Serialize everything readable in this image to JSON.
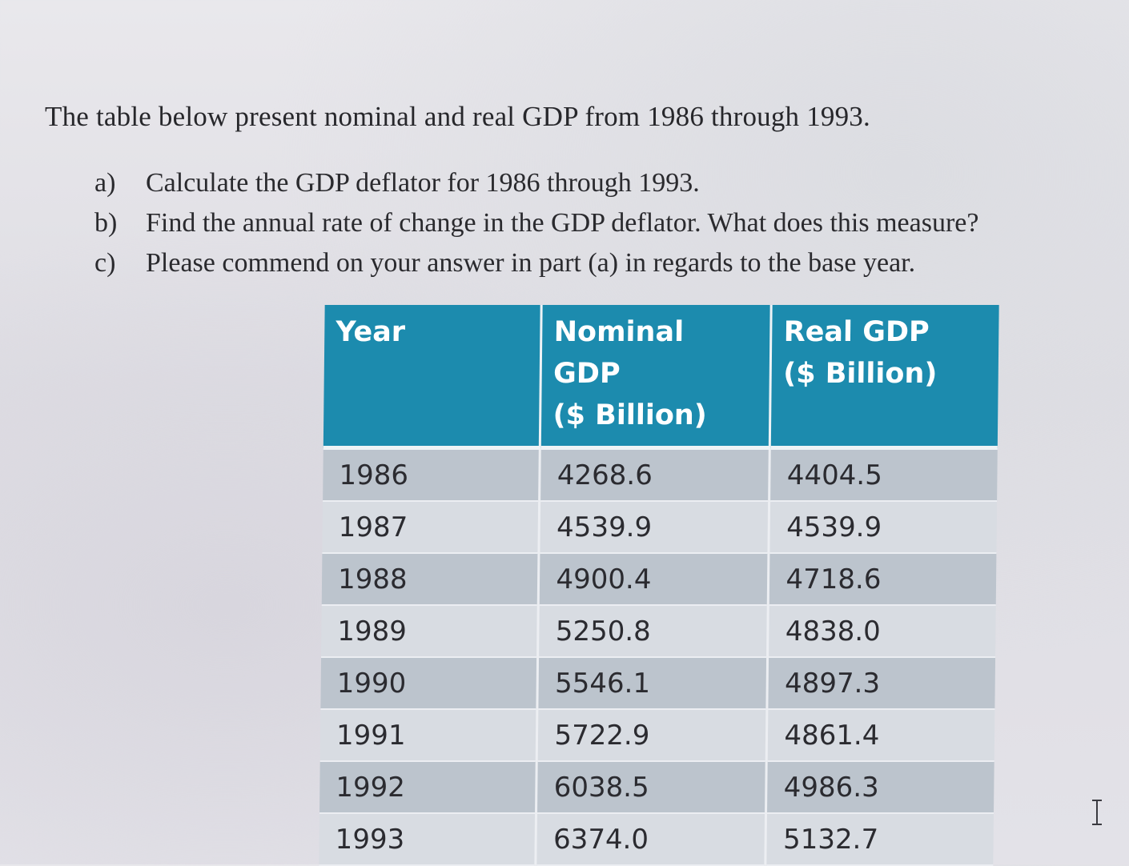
{
  "intro": "The table below present nominal and real GDP from 1986 through 1993.",
  "questions": [
    {
      "marker": "a)",
      "text": "Calculate the GDP deflator for 1986 through 1993."
    },
    {
      "marker": "b)",
      "text": "Find the annual rate of change in the GDP deflator. What does this measure?"
    },
    {
      "marker": "c)",
      "text": "Please commend on your answer in part (a) in regards to the base year."
    }
  ],
  "table": {
    "headers": {
      "year": "Year",
      "nominal_line1": "Nominal GDP",
      "nominal_line2": "($ Billion)",
      "real_line1": "Real GDP",
      "real_line2": "($ Billion)"
    },
    "rows": [
      {
        "year": "1986",
        "nominal": "4268.6",
        "real": "4404.5"
      },
      {
        "year": "1987",
        "nominal": "4539.9",
        "real": "4539.9"
      },
      {
        "year": "1988",
        "nominal": "4900.4",
        "real": "4718.6"
      },
      {
        "year": "1989",
        "nominal": "5250.8",
        "real": "4838.0"
      },
      {
        "year": "1990",
        "nominal": "5546.1",
        "real": "4897.3"
      },
      {
        "year": "1991",
        "nominal": "5722.9",
        "real": "4861.4"
      },
      {
        "year": "1992",
        "nominal": "6038.5",
        "real": "4986.3"
      },
      {
        "year": "1993",
        "nominal": "6374.0",
        "real": "5132.7"
      }
    ]
  },
  "colors": {
    "header_bg": "#1c8bae",
    "header_text": "#ffffff",
    "row_dark": "#bcc4cd",
    "row_light": "#d8dce2"
  },
  "icons": {
    "cursor": "text-cursor-icon"
  }
}
